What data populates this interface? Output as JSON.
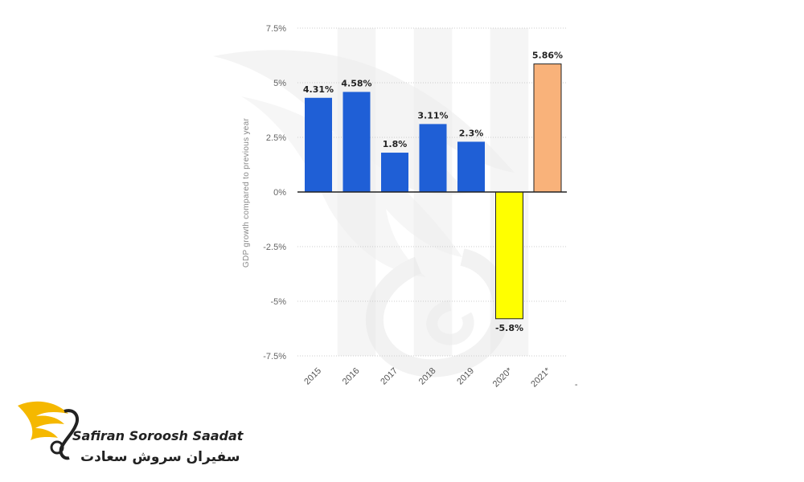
{
  "chart_data": {
    "type": "bar",
    "categories": [
      "2015",
      "2016",
      "2017",
      "2018",
      "2019",
      "2020*",
      "2021*"
    ],
    "values": [
      4.31,
      4.58,
      1.8,
      3.11,
      2.3,
      -5.8,
      5.86
    ],
    "data_labels": [
      "4.31%",
      "4.58%",
      "1.8%",
      "3.11%",
      "2.3%",
      "-5.8%",
      "5.86%"
    ],
    "bar_colors": [
      "#1f5fd6",
      "#1f5fd6",
      "#1f5fd6",
      "#1f5fd6",
      "#1f5fd6",
      "#ffff00",
      "#f9b27a"
    ],
    "ylabel": "GDP growth compared to previous year",
    "yticks": [
      7.5,
      5,
      2.5,
      0,
      -2.5,
      -5,
      -7.5
    ],
    "ytick_labels": [
      "7.5%",
      "5%",
      "2.5%",
      "0%",
      "-2.5%",
      "-5%",
      "-7.5%"
    ],
    "ylim": [
      -7.5,
      7.5
    ],
    "grid": true,
    "extra_xtick_label": "-"
  },
  "logo": {
    "name_en": "Safiran Soroosh Saadat",
    "name_fa": "سفیران سروش سعادت"
  }
}
